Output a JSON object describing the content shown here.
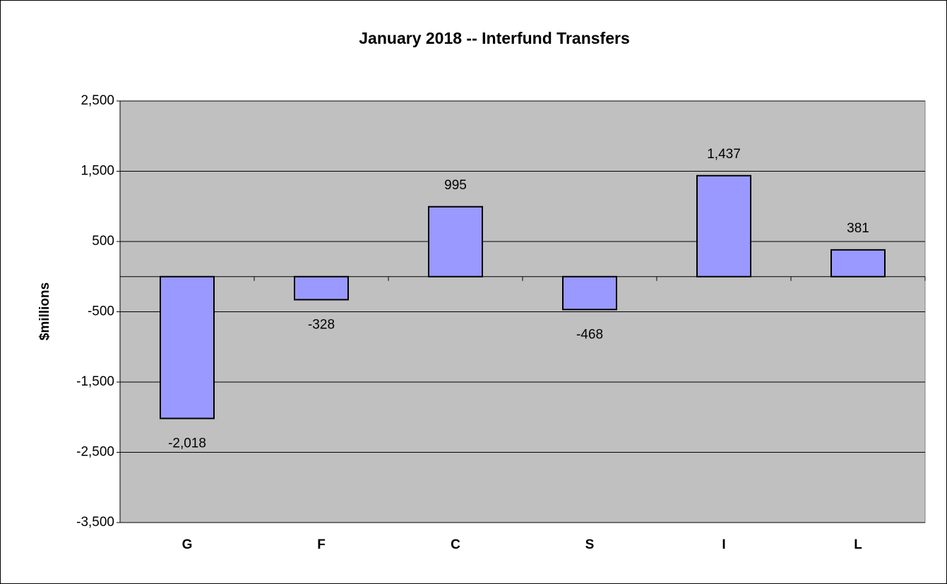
{
  "chart_data": {
    "type": "bar",
    "title": "January 2018 --  Interfund Transfers",
    "ylabel": "$millions",
    "categories": [
      "G",
      "F",
      "C",
      "S",
      "I",
      "L"
    ],
    "values": [
      -2018,
      -328,
      995,
      -468,
      1437,
      381
    ],
    "value_labels": [
      "-2,018",
      "-328",
      "995",
      "-468",
      "1,437",
      "381"
    ],
    "color": "#9999ff",
    "ylim": [
      -3500,
      2500
    ],
    "yticks": [
      {
        "value": -3500,
        "label": "-3,500"
      },
      {
        "value": -2500,
        "label": "-2,500"
      },
      {
        "value": -1500,
        "label": "-1,500"
      },
      -500,
      500,
      {
        "value": 1500,
        "label": "1,500"
      },
      {
        "value": 2500,
        "label": "2,500"
      }
    ],
    "grid": true
  }
}
